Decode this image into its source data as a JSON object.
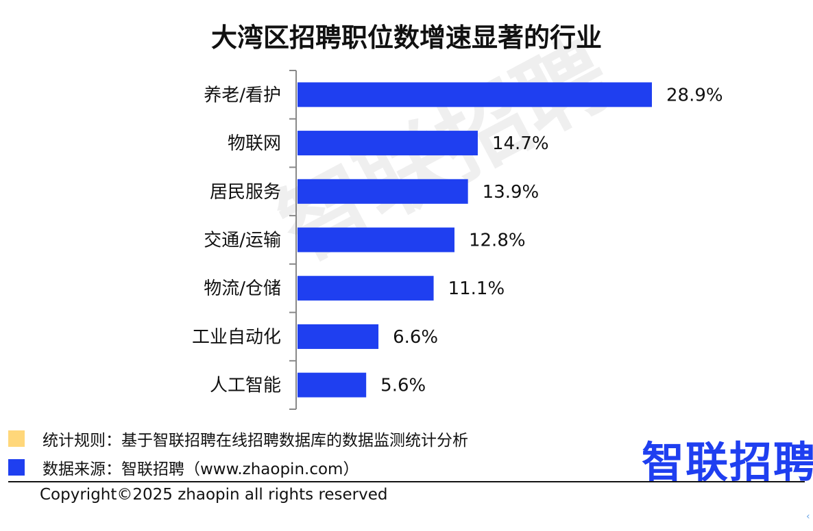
{
  "chart_data": {
    "type": "bar",
    "orientation": "horizontal",
    "title": "大湾区招聘职位数增速显著的行业",
    "categories": [
      "养老/看护",
      "物联网",
      "居民服务",
      "交通/运输",
      "物流/仓储",
      "工业自动化",
      "人工智能"
    ],
    "values": [
      28.9,
      14.7,
      13.9,
      12.8,
      11.1,
      6.6,
      5.6
    ],
    "data_labels": [
      "28.9%",
      "14.7%",
      "13.9%",
      "12.8%",
      "11.1%",
      "6.6%",
      "5.6%"
    ],
    "value_unit": "%",
    "xlim": [
      0,
      30
    ],
    "grid": false,
    "legend": "none",
    "bar_color": "#1f3ff0"
  },
  "watermark_text": "智联招聘",
  "notes": [
    {
      "label": "统计规则：基于智联招聘在线招聘数据库的数据监测统计分析",
      "color": "#ffd77a"
    },
    {
      "label": "数据来源：智联招聘（www.zhaopin.com）",
      "color": "#1f3ff0"
    }
  ],
  "logo_text": "智联招聘",
  "copyright": "Copyright©2025 zhaopin all rights reserved",
  "corner_icon": "chevron-left-icon"
}
